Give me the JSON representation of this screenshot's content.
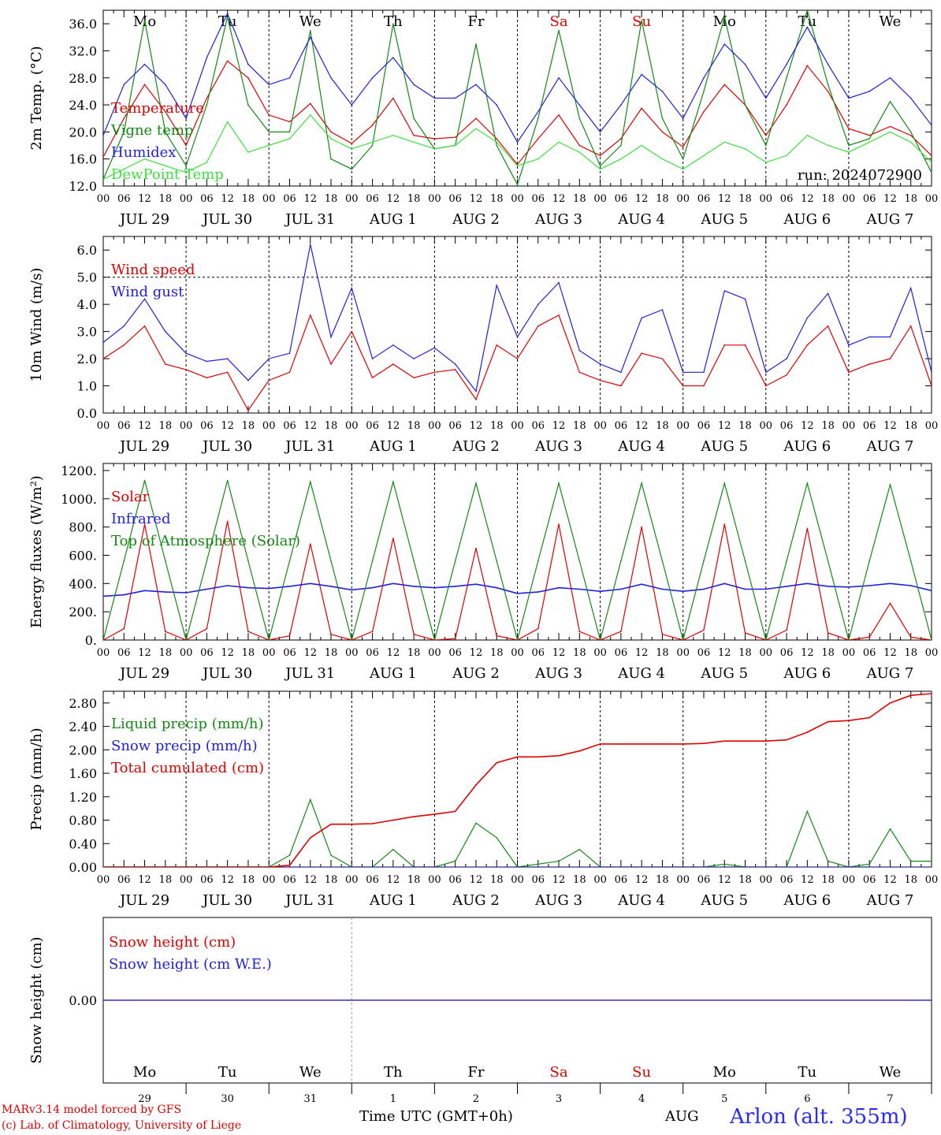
{
  "meteogram": {
    "run_label": "run: 2024072900",
    "x_axis_title": "Time UTC (GMT+0h)",
    "month_label": "AUG",
    "station": "Arlon (alt. 355m)",
    "credit_line1": "MARv3.14 model forced by GFS",
    "credit_line2": "(c) Lab. of Climatology, University of Liege",
    "hour_ticks": [
      "00",
      "06",
      "12",
      "18"
    ],
    "date_labels": [
      "JUL 29",
      "JUL 30",
      "JUL 31",
      "AUG  1",
      "AUG  2",
      "AUG  3",
      "AUG  4",
      "AUG  5",
      "AUG  6",
      "AUG  7"
    ],
    "weekdays": [
      "Mo",
      "Tu",
      "We",
      "Th",
      "Fr",
      "Sa",
      "Su",
      "Mo",
      "Tu",
      "We"
    ],
    "weekend_color": "#e00000",
    "weekend_days": [
      5,
      6
    ],
    "day_numbers": [
      "29",
      "30",
      "31",
      "1",
      "2",
      "3",
      "4",
      "5",
      "6",
      "7"
    ]
  },
  "chart_data": [
    {
      "type": "line",
      "ylabel": "2m Temp. (°C)",
      "ylim": [
        12,
        38
      ],
      "yticks": [
        "12.0",
        "16.0",
        "20.0",
        "24.0",
        "28.0",
        "32.0",
        "36.0"
      ],
      "x_hours": [
        0,
        6,
        12,
        18,
        24,
        30,
        36,
        42,
        48,
        54,
        60,
        66,
        72,
        78,
        84,
        90,
        96,
        102,
        108,
        114,
        120,
        126,
        132,
        138,
        144,
        150,
        156,
        162,
        168,
        174,
        180,
        186,
        192,
        198,
        204,
        210,
        216,
        222,
        228,
        234,
        240
      ],
      "series": [
        {
          "name": "Temperature",
          "color": "#e00000",
          "values": [
            16.3,
            22.0,
            27.0,
            23.0,
            18.0,
            25.0,
            30.5,
            28.0,
            22.5,
            21.5,
            24.2,
            20.0,
            18.3,
            21.0,
            25.0,
            19.5,
            19.0,
            19.2,
            22.0,
            19.0,
            15.2,
            19.0,
            22.5,
            18.0,
            16.5,
            19.0,
            23.5,
            20.0,
            17.8,
            23.0,
            27.0,
            24.0,
            19.5,
            24.0,
            29.8,
            26.0,
            20.5,
            19.5,
            20.8,
            19.5,
            16.5
          ]
        },
        {
          "name": "Vigne temp",
          "color": "#138a13",
          "values": [
            13.0,
            20.0,
            36.5,
            20.0,
            15.0,
            24.0,
            37.0,
            24.0,
            20.0,
            20.0,
            35.0,
            16.0,
            14.5,
            18.0,
            36.0,
            22.0,
            17.5,
            18.0,
            33.0,
            18.0,
            12.2,
            22.0,
            35.0,
            22.0,
            15.0,
            18.0,
            36.5,
            22.0,
            16.0,
            26.0,
            37.0,
            24.0,
            18.0,
            28.0,
            38.0,
            27.0,
            18.0,
            19.0,
            24.5,
            20.0,
            14.0
          ]
        },
        {
          "name": "Humidex",
          "color": "#2020e0",
          "values": [
            19.5,
            27.0,
            30.0,
            27.0,
            22.0,
            31.0,
            37.5,
            30.0,
            27.0,
            28.0,
            34.0,
            28.0,
            24.0,
            28.0,
            31.0,
            27.0,
            25.0,
            25.0,
            27.0,
            24.0,
            18.5,
            23.0,
            28.0,
            24.0,
            20.0,
            24.0,
            28.5,
            26.0,
            22.0,
            28.0,
            33.0,
            30.0,
            25.0,
            30.0,
            35.5,
            30.0,
            25.0,
            26.0,
            28.0,
            25.0,
            21.0
          ]
        },
        {
          "name": "DewPoint Temp",
          "color": "#3ee03e",
          "values": [
            13.0,
            14.5,
            16.0,
            15.0,
            14.0,
            15.5,
            21.5,
            17.0,
            18.0,
            19.0,
            22.5,
            19.0,
            17.5,
            18.5,
            19.5,
            18.5,
            17.5,
            18.0,
            20.5,
            18.5,
            15.0,
            16.0,
            18.5,
            17.0,
            14.5,
            16.0,
            18.0,
            16.0,
            14.5,
            16.5,
            18.5,
            17.5,
            15.5,
            16.5,
            19.5,
            18.0,
            17.0,
            18.5,
            20.0,
            18.5,
            15.5
          ]
        }
      ]
    },
    {
      "type": "line",
      "ylabel": "10m Wind (m/s)",
      "ylim": [
        0,
        6.5
      ],
      "yticks": [
        "0.0",
        "1.0",
        "2.0",
        "3.0",
        "4.0",
        "5.0",
        "6.0"
      ],
      "reference_line": 5.0,
      "x_hours": [
        0,
        6,
        12,
        18,
        24,
        30,
        36,
        42,
        48,
        54,
        60,
        66,
        72,
        78,
        84,
        90,
        96,
        102,
        108,
        114,
        120,
        126,
        132,
        138,
        144,
        150,
        156,
        162,
        168,
        174,
        180,
        186,
        192,
        198,
        204,
        210,
        216,
        222,
        228,
        234,
        240
      ],
      "series": [
        {
          "name": "Wind speed",
          "color": "#e00000",
          "values": [
            2.0,
            2.5,
            3.2,
            1.8,
            1.6,
            1.3,
            1.5,
            0.1,
            1.2,
            1.5,
            3.6,
            1.8,
            3.0,
            1.3,
            1.8,
            1.3,
            1.5,
            1.6,
            0.5,
            2.5,
            2.0,
            3.2,
            3.6,
            1.5,
            1.2,
            1.0,
            2.2,
            2.0,
            1.0,
            1.0,
            2.5,
            2.5,
            1.0,
            1.4,
            2.5,
            3.2,
            1.5,
            1.8,
            2.0,
            3.2,
            1.0
          ]
        },
        {
          "name": "Wind gust",
          "color": "#2020e0",
          "values": [
            2.6,
            3.2,
            4.2,
            3.0,
            2.2,
            1.9,
            2.0,
            1.2,
            2.0,
            2.2,
            6.2,
            2.8,
            4.6,
            2.0,
            2.5,
            2.0,
            2.4,
            1.8,
            0.8,
            4.7,
            2.8,
            4.0,
            4.8,
            2.3,
            1.8,
            1.5,
            3.5,
            3.8,
            1.5,
            1.5,
            4.5,
            4.2,
            1.5,
            2.0,
            3.5,
            4.4,
            2.5,
            2.8,
            2.8,
            4.6,
            1.5
          ]
        }
      ]
    },
    {
      "type": "line",
      "ylabel": "Energy fluxes (W/m²)",
      "ylim": [
        0,
        1250
      ],
      "yticks": [
        "0.",
        "200.",
        "400.",
        "600.",
        "800.",
        "1000.",
        "1200."
      ],
      "x_hours": [
        0,
        6,
        12,
        18,
        24,
        30,
        36,
        42,
        48,
        54,
        60,
        66,
        72,
        78,
        84,
        90,
        96,
        102,
        108,
        114,
        120,
        126,
        132,
        138,
        144,
        150,
        156,
        162,
        168,
        174,
        180,
        186,
        192,
        198,
        204,
        210,
        216,
        222,
        228,
        234,
        240
      ],
      "series": [
        {
          "name": "Solar",
          "color": "#e00000",
          "values": [
            0,
            80,
            820,
            60,
            0,
            80,
            840,
            60,
            0,
            30,
            680,
            40,
            0,
            60,
            720,
            40,
            0,
            10,
            650,
            30,
            0,
            80,
            820,
            60,
            0,
            60,
            800,
            40,
            0,
            70,
            820,
            50,
            0,
            70,
            790,
            50,
            0,
            20,
            260,
            20,
            0
          ]
        },
        {
          "name": "Infrared",
          "color": "#2020e0",
          "values": [
            310,
            320,
            350,
            340,
            335,
            360,
            385,
            370,
            365,
            380,
            400,
            380,
            355,
            370,
            400,
            380,
            370,
            380,
            395,
            370,
            330,
            340,
            370,
            360,
            345,
            360,
            395,
            360,
            345,
            360,
            400,
            360,
            360,
            380,
            400,
            380,
            375,
            385,
            400,
            385,
            350
          ]
        },
        {
          "name": "Top of Atmosphere (Solar)",
          "color": "#138a13",
          "values": [
            0,
            560,
            1130,
            560,
            0,
            560,
            1130,
            560,
            0,
            560,
            1120,
            560,
            0,
            560,
            1120,
            560,
            0,
            560,
            1110,
            560,
            0,
            560,
            1110,
            560,
            0,
            560,
            1110,
            560,
            0,
            560,
            1110,
            560,
            0,
            560,
            1110,
            560,
            0,
            560,
            1100,
            560,
            0
          ]
        }
      ]
    },
    {
      "type": "line",
      "ylabel": "Precip (mm/h)",
      "ylim": [
        0,
        3.0
      ],
      "yticks": [
        "0.00",
        "0.40",
        "0.80",
        "1.20",
        "1.60",
        "2.00",
        "2.40",
        "2.80"
      ],
      "x_hours": [
        0,
        6,
        12,
        18,
        24,
        30,
        36,
        42,
        48,
        54,
        60,
        66,
        72,
        78,
        84,
        90,
        96,
        102,
        108,
        114,
        120,
        126,
        132,
        138,
        144,
        150,
        156,
        162,
        168,
        174,
        180,
        186,
        192,
        198,
        204,
        210,
        216,
        222,
        228,
        234,
        240
      ],
      "series": [
        {
          "name": "Liquid precip (mm/h)",
          "color": "#138a13",
          "values": [
            0,
            0,
            0,
            0,
            0,
            0,
            0,
            0,
            0,
            0.2,
            1.15,
            0.2,
            0,
            0,
            0.3,
            0,
            0,
            0.1,
            0.75,
            0.5,
            0,
            0.05,
            0.1,
            0.3,
            0,
            0,
            0,
            0,
            0,
            0,
            0.05,
            0,
            0,
            0,
            0.95,
            0.1,
            0,
            0.05,
            0.65,
            0.1,
            0.1
          ]
        },
        {
          "name": "Snow precip (mm/h)",
          "color": "#2020e0",
          "values": [
            0,
            0,
            0,
            0,
            0,
            0,
            0,
            0,
            0,
            0,
            0,
            0,
            0,
            0,
            0,
            0,
            0,
            0,
            0,
            0,
            0,
            0,
            0,
            0,
            0,
            0,
            0,
            0,
            0,
            0,
            0,
            0,
            0,
            0,
            0,
            0,
            0,
            0,
            0,
            0,
            0
          ]
        },
        {
          "name": "Total cumulated (cm)",
          "color": "#e00000",
          "values": [
            0,
            0,
            0,
            0,
            0,
            0,
            0,
            0,
            0,
            0.03,
            0.5,
            0.73,
            0.73,
            0.74,
            0.8,
            0.86,
            0.9,
            0.95,
            1.4,
            1.78,
            1.88,
            1.88,
            1.9,
            1.98,
            2.1,
            2.1,
            2.1,
            2.1,
            2.1,
            2.11,
            2.15,
            2.15,
            2.15,
            2.17,
            2.3,
            2.48,
            2.5,
            2.55,
            2.8,
            2.93,
            2.96
          ]
        }
      ]
    },
    {
      "type": "line",
      "ylabel": "Snow height (cm)",
      "ylim": [
        -1,
        1
      ],
      "yticks": [
        "0.00"
      ],
      "x_hours": [
        0,
        240
      ],
      "series": [
        {
          "name": "Snow height (cm)",
          "color": "#e00000",
          "values": [
            0,
            0
          ]
        },
        {
          "name": "Snow height (cm W.E.)",
          "color": "#2020e0",
          "values": [
            0,
            0
          ]
        }
      ]
    }
  ]
}
